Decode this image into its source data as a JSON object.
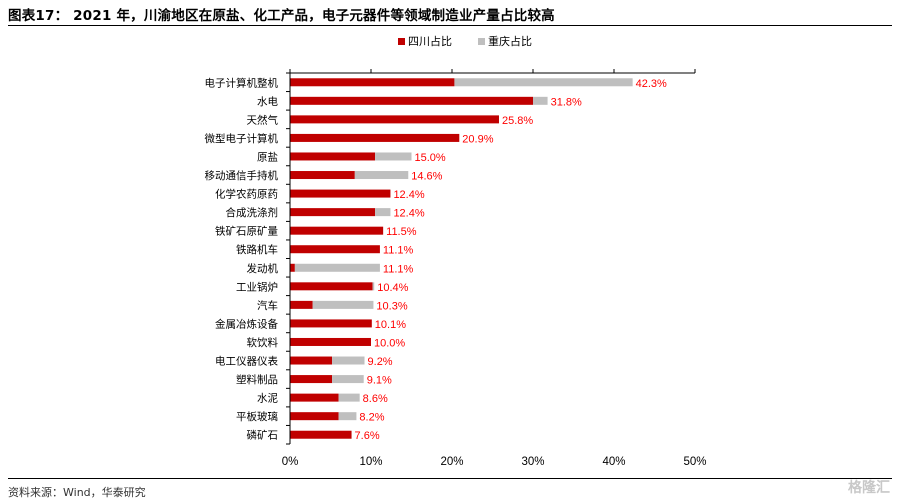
{
  "title": "图表17：  2021 年，川渝地区在原盐、化工产品，电子元器件等领域制造业产量占比较高",
  "source": "资料来源：Wind，华泰研究",
  "watermark": "格隆汇",
  "colors": {
    "sichuan": "#c00000",
    "chongqing": "#bfbfbf",
    "label": "#ff0000",
    "axis": "#000000"
  },
  "chart_data": {
    "type": "bar",
    "orientation": "horizontal",
    "stacked": true,
    "categories": [
      "电子计算机整机",
      "水电",
      "天然气",
      "微型电子计算机",
      "原盐",
      "移动通信手持机",
      "化学农药原药",
      "合成洗涤剂",
      "铁矿石原矿量",
      "铁路机车",
      "发动机",
      "工业锅炉",
      "汽车",
      "金属冶炼设备",
      "软饮料",
      "电工仪器仪表",
      "塑料制品",
      "水泥",
      "平板玻璃",
      "磷矿石"
    ],
    "series": [
      {
        "name": "四川占比",
        "color": "#c00000",
        "values": [
          20.3,
          30.0,
          25.8,
          20.9,
          10.5,
          8.0,
          12.4,
          10.5,
          11.5,
          11.1,
          0.6,
          10.2,
          2.8,
          10.1,
          10.0,
          5.2,
          5.2,
          6.0,
          6.0,
          7.6
        ]
      },
      {
        "name": "重庆占比",
        "color": "#bfbfbf",
        "values": [
          22.0,
          1.8,
          0.0,
          0.0,
          4.5,
          6.6,
          0.0,
          1.9,
          0.0,
          0.0,
          10.5,
          0.2,
          7.5,
          0.0,
          0.0,
          4.0,
          3.9,
          2.6,
          2.2,
          0.0
        ]
      }
    ],
    "totals": [
      42.3,
      31.8,
      25.8,
      20.9,
      15.0,
      14.6,
      12.4,
      12.4,
      11.5,
      11.1,
      11.1,
      10.4,
      10.3,
      10.1,
      10.0,
      9.2,
      9.1,
      8.6,
      8.2,
      7.6
    ],
    "total_labels": [
      "42.3%",
      "31.8%",
      "25.8%",
      "20.9%",
      "15.0%",
      "14.6%",
      "12.4%",
      "12.4%",
      "11.5%",
      "11.1%",
      "11.1%",
      "10.4%",
      "10.3%",
      "10.1%",
      "10.0%",
      "9.2%",
      "9.1%",
      "8.6%",
      "8.2%",
      "7.6%"
    ],
    "xlim": [
      0,
      50
    ],
    "xticks": [
      0,
      10,
      20,
      30,
      40,
      50
    ],
    "xtick_labels": [
      "0%",
      "10%",
      "20%",
      "30%",
      "40%",
      "50%"
    ],
    "legend": [
      "四川占比",
      "重庆占比"
    ],
    "legend_position": "top-right",
    "grid": false
  }
}
